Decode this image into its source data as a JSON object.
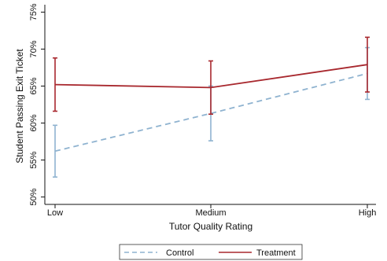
{
  "chart_data": {
    "type": "line",
    "xlabel": "Tutor Quality Rating",
    "ylabel": "Student Passing Exit Ticket",
    "categories": [
      "Low",
      "Medium",
      "High"
    ],
    "ylim": [
      0.49,
      0.76
    ],
    "yticks": [
      0.5,
      0.55,
      0.6,
      0.65,
      0.7,
      0.75
    ],
    "ytick_labels": [
      "50%",
      "55%",
      "60%",
      "65%",
      "70%",
      "75%"
    ],
    "grid": false,
    "legend_position": "bottom",
    "series": [
      {
        "name": "Control",
        "color": "#8fb3d0",
        "line_style": "dashed",
        "values": [
          0.562,
          0.613,
          0.667
        ],
        "ci_low": [
          0.527,
          0.576,
          0.632
        ],
        "ci_high": [
          0.597,
          0.65,
          0.702
        ]
      },
      {
        "name": "Treatment",
        "color": "#a8282e",
        "line_style": "solid",
        "values": [
          0.652,
          0.648,
          0.679
        ],
        "ci_low": [
          0.616,
          0.612,
          0.642
        ],
        "ci_high": [
          0.688,
          0.684,
          0.716
        ]
      }
    ]
  }
}
